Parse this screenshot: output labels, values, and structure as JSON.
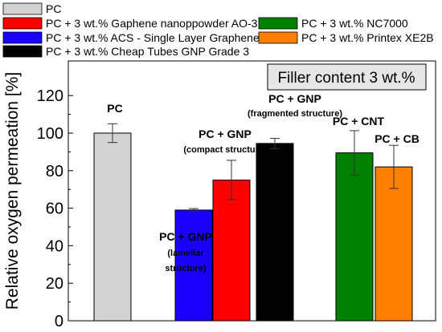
{
  "chart_data": {
    "type": "bar",
    "ylabel": "Relative oxygen permeation [%]",
    "ylim": [
      0,
      130
    ],
    "yticks": [
      0,
      20,
      40,
      60,
      80,
      100,
      120
    ],
    "grid": false,
    "legend_position": "top",
    "box_label": "Filler content 3 wt.%",
    "series": [
      {
        "name": "PC",
        "value": 100,
        "error": 5,
        "color": "#d3d3d3",
        "annotation": [
          "PC"
        ]
      },
      {
        "name": "PC + 3 wt.% ACS - Single Layer Graphene",
        "value": 59,
        "error": 0.8,
        "color": "#1a00ff",
        "annotation": [
          "PC + GNP",
          "(lamellar",
          "structure)"
        ]
      },
      {
        "name": "PC + 3 wt.% Gaphene nanoppowder AO-3",
        "value": 75,
        "error": 10.5,
        "color": "#ff0000",
        "annotation": [
          "PC + GNP",
          "(compact structure)"
        ]
      },
      {
        "name": "PC + 3 wt.% Cheap Tubes GNP Grade 3",
        "value": 94.5,
        "error": 2.7,
        "color": "#000000",
        "annotation": [
          "PC +  GNP",
          "(fragmented structure)"
        ]
      },
      {
        "name": "PC + 3 wt.% NC7000",
        "value": 89.5,
        "error": 11.8,
        "color": "#008000",
        "annotation": [
          "PC + CNT"
        ]
      },
      {
        "name": "PC + 3 wt.% Printex XE2B",
        "value": 82,
        "error": 11.5,
        "color": "#ff8000",
        "annotation": [
          "PC + CB"
        ]
      }
    ],
    "legend": [
      {
        "label": "PC",
        "color": "#d3d3d3"
      },
      {
        "label": "PC + 3 wt.% Gaphene nanoppowder AO-3",
        "color": "#ff0000"
      },
      {
        "label": "PC + 3 wt.% NC7000",
        "color": "#008000"
      },
      {
        "label": "PC + 3 wt.% ACS - Single Layer Graphene",
        "color": "#1a00ff"
      },
      {
        "label": "PC + 3 wt.% Printex XE2B",
        "color": "#ff8000"
      },
      {
        "label": "PC + 3 wt.% Cheap Tubes GNP Grade 3",
        "color": "#000000"
      }
    ]
  }
}
